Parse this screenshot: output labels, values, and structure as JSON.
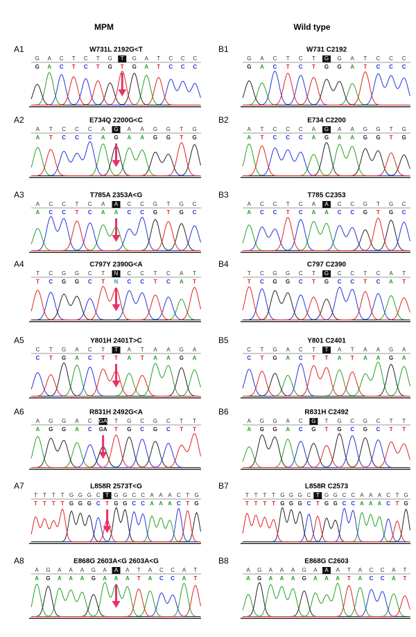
{
  "columns": [
    {
      "header": "MPM",
      "panels": [
        {
          "label": "A1",
          "title": "W731L 2192G<T",
          "bases": [
            "G",
            "A",
            "C",
            "T",
            "C",
            "T",
            "G",
            "T",
            "G",
            "A",
            "T",
            "C",
            "C",
            "C"
          ],
          "highlight": 7
        },
        {
          "label": "A2",
          "title": "E734Q 2200G<C",
          "bases": [
            "A",
            "T",
            "C",
            "C",
            "C",
            "A",
            "G",
            "A",
            "A",
            "G",
            "G",
            "T",
            "G"
          ],
          "highlight": 6
        },
        {
          "label": "A3",
          "title": "T785A 2353A<G",
          "bases": [
            "A",
            "C",
            "C",
            "T",
            "C",
            "A",
            "A",
            "C",
            "C",
            "G",
            "T",
            "G",
            "C"
          ],
          "highlight": 6
        },
        {
          "label": "A4",
          "title": "C797Y 2390G<A",
          "bases": [
            "T",
            "C",
            "G",
            "G",
            "C",
            "T",
            "N",
            "C",
            "C",
            "T",
            "C",
            "A",
            "T"
          ],
          "highlight": 6
        },
        {
          "label": "A5",
          "title": "Y801H 2401T>C",
          "bases": [
            "C",
            "T",
            "G",
            "A",
            "C",
            "T",
            "T",
            "A",
            "T",
            "A",
            "A",
            "G",
            "A"
          ],
          "highlight": 6
        },
        {
          "label": "A6",
          "title": "R831H 2492G<A",
          "bases": [
            "A",
            "G",
            "G",
            "A",
            "C",
            "GA",
            "T",
            "G",
            "C",
            "G",
            "C",
            "T",
            "T"
          ],
          "highlight": 5
        },
        {
          "label": "A7",
          "title": "L858R 2573T<G",
          "bases": [
            "T",
            "T",
            "T",
            "T",
            "G",
            "G",
            "G",
            "C",
            "T",
            "G",
            "G",
            "C",
            "C",
            "A",
            "A",
            "A",
            "C",
            "T",
            "G"
          ],
          "highlight": 8
        },
        {
          "label": "A8",
          "title": "E868G 2603A<G  2603A<G",
          "bases": [
            "A",
            "G",
            "A",
            "A",
            "A",
            "G",
            "A",
            "A",
            "A",
            "T",
            "A",
            "C",
            "C",
            "A",
            "T"
          ],
          "highlight": 7
        }
      ]
    },
    {
      "header": "Wild type",
      "panels": [
        {
          "label": "B1",
          "title": "W731 C2192",
          "bases": [
            "G",
            "A",
            "C",
            "T",
            "C",
            "T",
            "G",
            "G",
            "A",
            "T",
            "C",
            "C",
            "C"
          ],
          "highlight": 6
        },
        {
          "label": "B2",
          "title": "E734  C2200",
          "bases": [
            "A",
            "T",
            "C",
            "C",
            "C",
            "A",
            "G",
            "A",
            "A",
            "G",
            "G",
            "T",
            "G"
          ],
          "highlight": 6
        },
        {
          "label": "B3",
          "title": "T785  C2353",
          "bases": [
            "A",
            "C",
            "C",
            "T",
            "C",
            "A",
            "A",
            "C",
            "C",
            "G",
            "T",
            "G",
            "C"
          ],
          "highlight": 6
        },
        {
          "label": "B4",
          "title": "C797  C2390",
          "bases": [
            "T",
            "C",
            "G",
            "G",
            "C",
            "T",
            "G",
            "C",
            "C",
            "T",
            "C",
            "A",
            "T"
          ],
          "highlight": 6
        },
        {
          "label": "B5",
          "title": "Y801 C2401",
          "bases": [
            "C",
            "T",
            "G",
            "A",
            "C",
            "T",
            "T",
            "A",
            "T",
            "A",
            "A",
            "G",
            "A"
          ],
          "highlight": 6
        },
        {
          "label": "B6",
          "title": "R831H  C2492",
          "bases": [
            "A",
            "G",
            "G",
            "A",
            "C",
            "G",
            "T",
            "G",
            "C",
            "G",
            "C",
            "T",
            "T"
          ],
          "highlight": 5
        },
        {
          "label": "B7",
          "title": "L858R  C2573",
          "bases": [
            "T",
            "T",
            "T",
            "T",
            "G",
            "G",
            "G",
            "C",
            "T",
            "G",
            "G",
            "C",
            "C",
            "A",
            "A",
            "A",
            "C",
            "T",
            "G"
          ],
          "highlight": 8
        },
        {
          "label": "B8",
          "title": "E868G C2603",
          "bases": [
            "A",
            "G",
            "A",
            "A",
            "A",
            "G",
            "A",
            "A",
            "A",
            "T",
            "A",
            "C",
            "C",
            "A",
            "T"
          ],
          "highlight": 7
        }
      ]
    }
  ]
}
